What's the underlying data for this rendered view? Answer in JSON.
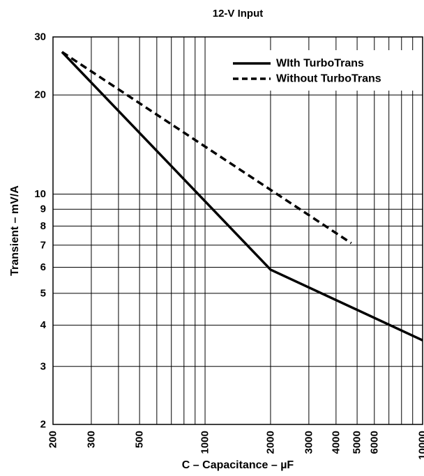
{
  "chart_data": {
    "type": "line",
    "title": "12-V Input",
    "xlabel": "C – Capacitance – µF",
    "ylabel": "Transient – mV/A",
    "x_scale": "log",
    "y_scale": "log",
    "xlim": [
      200,
      10000
    ],
    "ylim": [
      2,
      30
    ],
    "grid": true,
    "legend_position": "top-right",
    "x_ticks": [
      200,
      300,
      500,
      1000,
      2000,
      3000,
      4000,
      5000,
      6000,
      10000
    ],
    "x_tick_labels": [
      "200",
      "300",
      "500",
      "1000",
      "2000",
      "3000",
      "4000",
      "5000",
      "6000",
      "10000"
    ],
    "x_grid": [
      200,
      300,
      400,
      500,
      600,
      700,
      800,
      900,
      1000,
      2000,
      3000,
      4000,
      5000,
      6000,
      7000,
      8000,
      9000,
      10000
    ],
    "y_ticks": [
      2,
      3,
      4,
      5,
      6,
      7,
      8,
      9,
      10,
      20,
      30
    ],
    "y_tick_labels": [
      "2",
      "3",
      "4",
      "5",
      "6",
      "7",
      "8",
      "9",
      "10",
      "20",
      "30"
    ],
    "series": [
      {
        "name": "WIth TurboTrans",
        "style": "solid",
        "color": "#000000",
        "x": [
          220,
          2000,
          10000
        ],
        "y": [
          27,
          5.9,
          3.6
        ]
      },
      {
        "name": "Without TurboTrans",
        "style": "dashed",
        "color": "#000000",
        "x": [
          220,
          4700
        ],
        "y": [
          27,
          7.1
        ]
      }
    ]
  }
}
